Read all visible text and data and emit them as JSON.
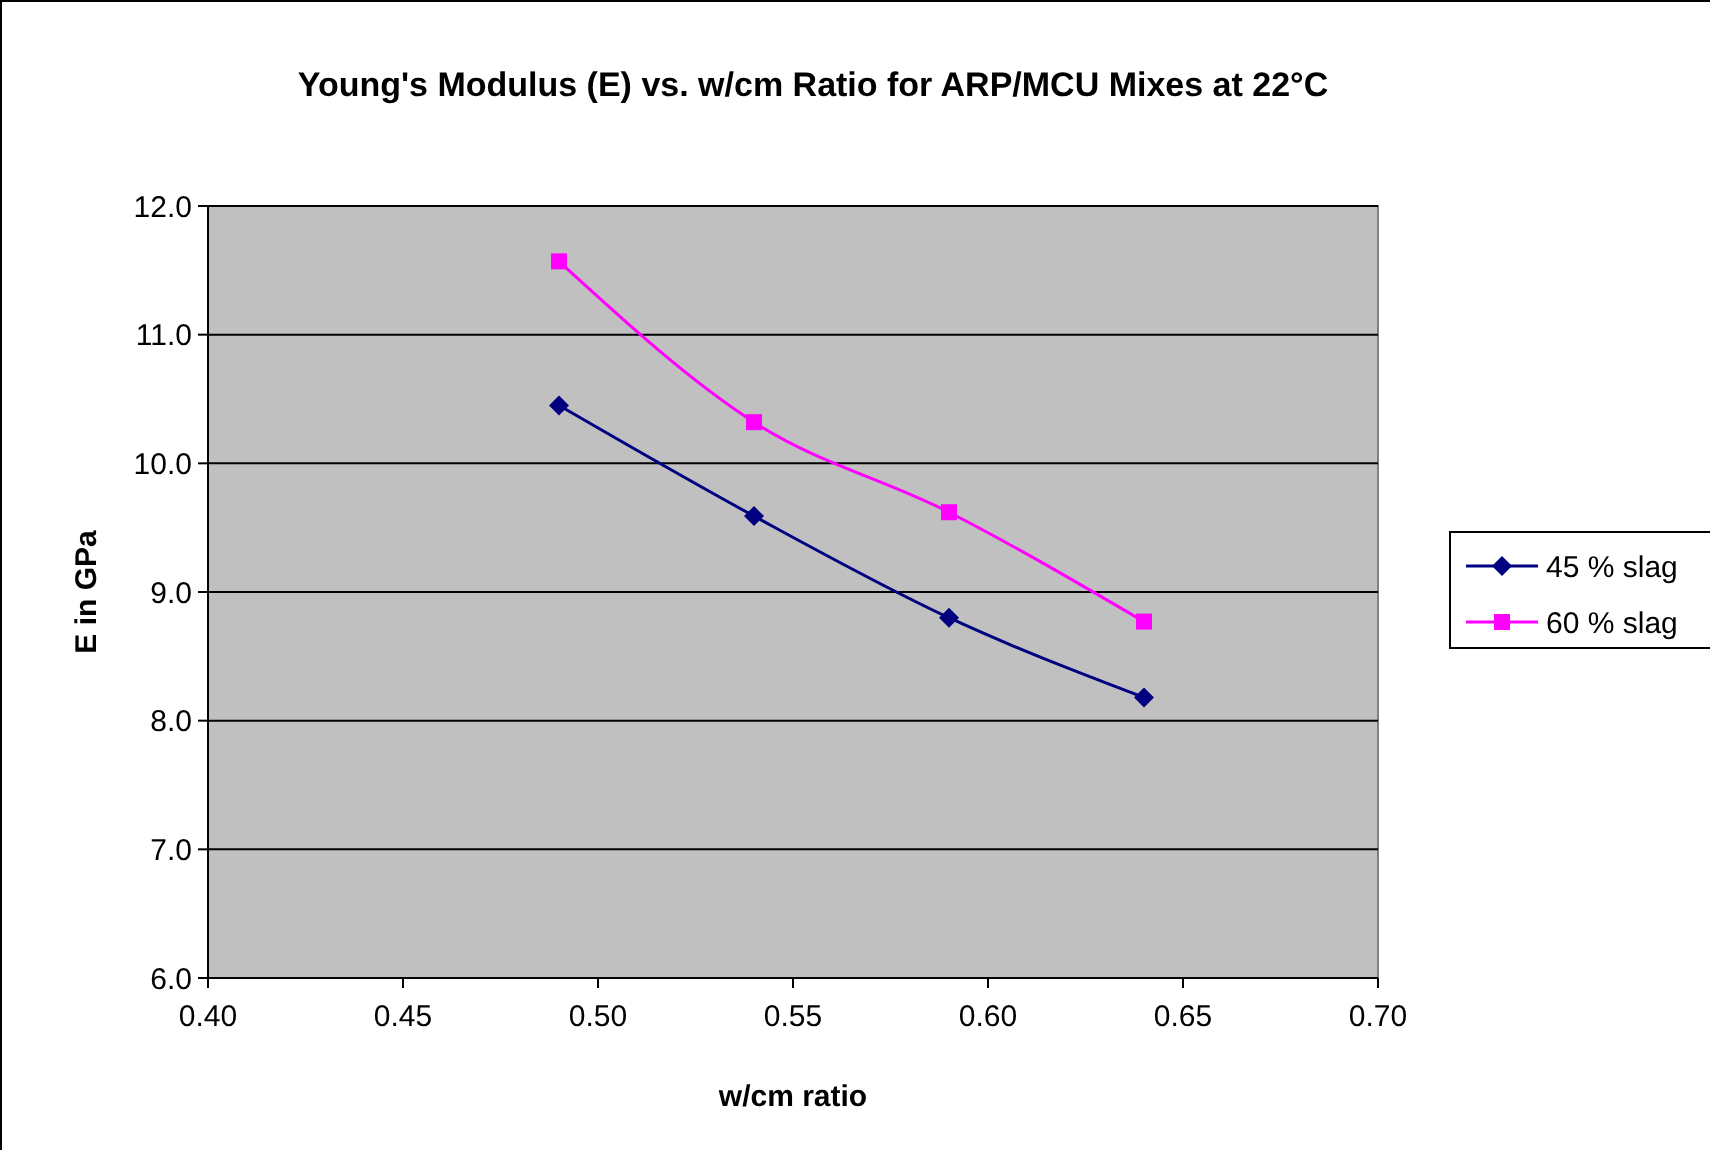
{
  "chart_data": {
    "type": "line",
    "title": "Young's Modulus (E) vs. w/cm Ratio for ARP/MCU Mixes at 22°C",
    "xlabel": "w/cm ratio",
    "ylabel": "E in GPa",
    "x": [
      0.49,
      0.54,
      0.59,
      0.64
    ],
    "series": [
      {
        "name": "45 % slag",
        "color": "#000080",
        "marker": "diamond",
        "values": [
          10.45,
          9.59,
          8.8,
          8.18
        ]
      },
      {
        "name": "60 % slag",
        "color": "#ff00ff",
        "marker": "square",
        "values": [
          11.57,
          10.32,
          9.62,
          8.77
        ]
      }
    ],
    "xlim": [
      0.4,
      0.7
    ],
    "xticks": [
      {
        "value": 0.4,
        "label": "0.40"
      },
      {
        "value": 0.45,
        "label": "0.45"
      },
      {
        "value": 0.5,
        "label": "0.50"
      },
      {
        "value": 0.55,
        "label": "0.55"
      },
      {
        "value": 0.6,
        "label": "0.60"
      },
      {
        "value": 0.65,
        "label": "0.65"
      },
      {
        "value": 0.7,
        "label": "0.70"
      }
    ],
    "ylim": [
      6,
      12
    ],
    "yticks": [
      {
        "value": 6,
        "label": "6.0"
      },
      {
        "value": 7,
        "label": "7.0"
      },
      {
        "value": 8,
        "label": "8.0"
      },
      {
        "value": 9,
        "label": "9.0"
      },
      {
        "value": 10,
        "label": "10.0"
      },
      {
        "value": 11,
        "label": "11.0"
      },
      {
        "value": 12,
        "label": "12.0"
      }
    ],
    "grid": "y",
    "legend": "right"
  }
}
